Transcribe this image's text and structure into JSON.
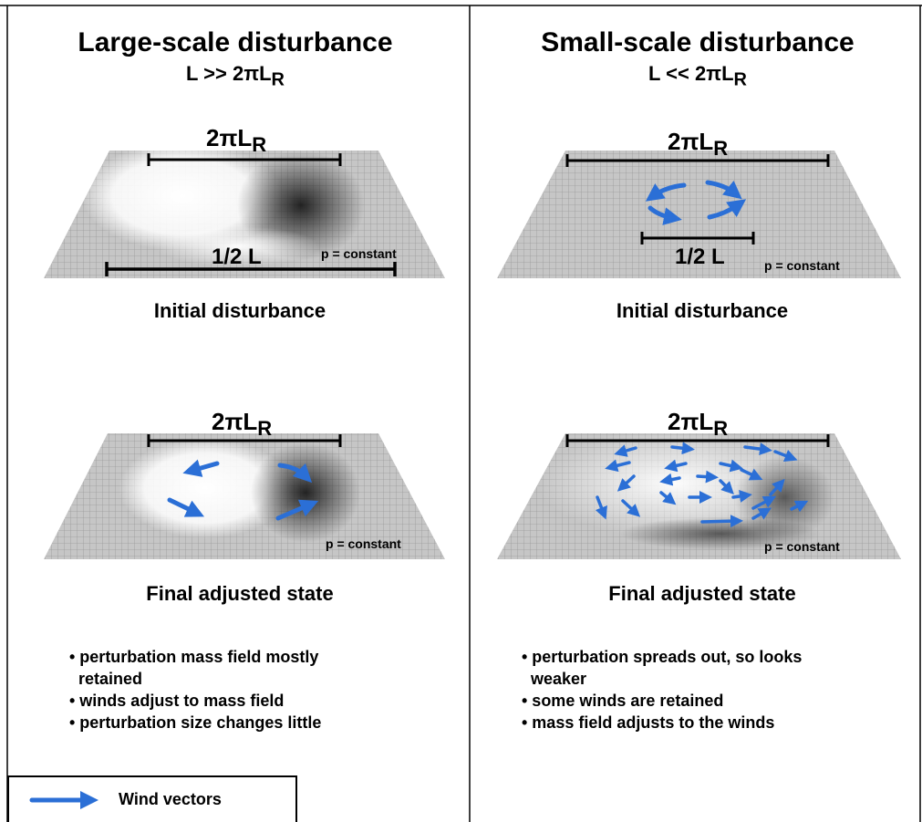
{
  "colors": {
    "wind": "#2b6fd6",
    "line": "#000000",
    "plane": "#bdbdbd"
  },
  "left": {
    "title": "Large-scale disturbance",
    "subtitle": "L >> 2πL",
    "subtitle_sub": "R",
    "top_panel": {
      "scale_label": "2πL",
      "scale_sub": "R",
      "length_label": "1/2 L",
      "pressure_label": "p = constant"
    },
    "top_caption": "Initial disturbance",
    "bottom_panel": {
      "scale_label": "2πL",
      "scale_sub": "R",
      "pressure_label": "p = constant"
    },
    "bottom_caption": "Final adjusted state",
    "bullets": [
      "• perturbation mass field mostly",
      "  retained",
      "• winds adjust to mass field",
      "• perturbation size changes little"
    ]
  },
  "right": {
    "title": "Small-scale disturbance",
    "subtitle": "L << 2πL",
    "subtitle_sub": "R",
    "top_panel": {
      "scale_label": "2πL",
      "scale_sub": "R",
      "length_label": "1/2 L",
      "pressure_label": "p = constant"
    },
    "top_caption": "Initial disturbance",
    "bottom_panel": {
      "scale_label": "2πL",
      "scale_sub": "R",
      "pressure_label": "p = constant"
    },
    "bottom_caption": "Final adjusted state",
    "bullets": [
      "• perturbation spreads out, so looks",
      "  weaker",
      "• some winds are retained",
      "• mass field adjusts to the winds"
    ]
  },
  "legend": {
    "label": "Wind vectors",
    "icon": "blue-arrow-icon"
  }
}
